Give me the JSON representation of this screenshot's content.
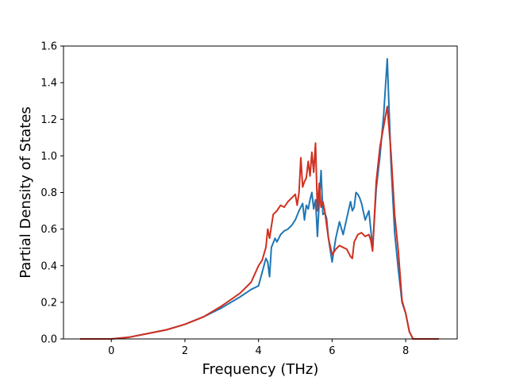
{
  "chart_data": {
    "type": "line",
    "title": "",
    "xlabel": "Frequency (THz)",
    "ylabel": "Partial Density of States",
    "xlim": [
      -1.3,
      9.4
    ],
    "ylim": [
      0.0,
      1.6
    ],
    "xticks": [
      0,
      2,
      4,
      6,
      8
    ],
    "yticks": [
      0.0,
      0.2,
      0.4,
      0.6,
      0.8,
      1.0,
      1.2,
      1.4,
      1.6
    ],
    "xtick_labels": [
      "0",
      "2",
      "4",
      "6",
      "8"
    ],
    "ytick_labels": [
      "0.0",
      "0.2",
      "0.4",
      "0.6",
      "0.8",
      "1.0",
      "1.2",
      "1.4",
      "1.6"
    ],
    "grid": false,
    "legend": false,
    "series": [
      {
        "color": "#1f77b4",
        "x": [
          -0.85,
          0.0,
          0.5,
          1.0,
          1.5,
          2.0,
          2.5,
          3.0,
          3.5,
          3.8,
          4.0,
          4.2,
          4.25,
          4.3,
          4.35,
          4.45,
          4.5,
          4.6,
          4.7,
          4.8,
          4.9,
          5.0,
          5.1,
          5.2,
          5.25,
          5.3,
          5.35,
          5.4,
          5.45,
          5.5,
          5.55,
          5.6,
          5.65,
          5.7,
          5.75,
          5.8,
          5.85,
          5.9,
          6.0,
          6.1,
          6.2,
          6.3,
          6.4,
          6.5,
          6.55,
          6.6,
          6.65,
          6.7,
          6.75,
          6.8,
          6.9,
          7.0,
          7.05,
          7.1,
          7.2,
          7.3,
          7.4,
          7.5,
          7.6,
          7.7,
          7.8,
          7.9,
          8.0,
          8.05,
          8.1,
          8.2,
          8.9
        ],
        "y": [
          0.0,
          0.0,
          0.01,
          0.03,
          0.05,
          0.08,
          0.12,
          0.17,
          0.23,
          0.27,
          0.29,
          0.44,
          0.42,
          0.34,
          0.5,
          0.55,
          0.53,
          0.57,
          0.59,
          0.6,
          0.62,
          0.65,
          0.7,
          0.74,
          0.65,
          0.73,
          0.71,
          0.76,
          0.8,
          0.71,
          0.76,
          0.56,
          0.75,
          0.92,
          0.68,
          0.69,
          0.66,
          0.55,
          0.42,
          0.55,
          0.64,
          0.57,
          0.66,
          0.75,
          0.7,
          0.72,
          0.8,
          0.79,
          0.77,
          0.74,
          0.65,
          0.7,
          0.6,
          0.49,
          0.82,
          1.0,
          1.22,
          1.53,
          0.96,
          0.58,
          0.38,
          0.2,
          0.14,
          0.09,
          0.04,
          0.0,
          0.0
        ]
      },
      {
        "color": "#d03020",
        "x": [
          -0.85,
          0.0,
          0.5,
          1.0,
          1.5,
          2.0,
          2.5,
          3.0,
          3.5,
          3.8,
          4.0,
          4.1,
          4.2,
          4.25,
          4.3,
          4.4,
          4.5,
          4.6,
          4.7,
          4.8,
          4.9,
          5.0,
          5.05,
          5.1,
          5.15,
          5.2,
          5.25,
          5.3,
          5.35,
          5.4,
          5.45,
          5.5,
          5.55,
          5.6,
          5.65,
          5.7,
          5.75,
          5.8,
          5.9,
          6.0,
          6.1,
          6.2,
          6.3,
          6.4,
          6.5,
          6.55,
          6.6,
          6.7,
          6.8,
          6.9,
          7.0,
          7.05,
          7.1,
          7.2,
          7.3,
          7.4,
          7.5,
          7.6,
          7.7,
          7.8,
          7.9,
          8.0,
          8.05,
          8.1,
          8.2,
          8.9
        ],
        "y": [
          0.0,
          0.0,
          0.01,
          0.03,
          0.05,
          0.08,
          0.12,
          0.18,
          0.25,
          0.31,
          0.4,
          0.43,
          0.5,
          0.6,
          0.55,
          0.68,
          0.7,
          0.73,
          0.72,
          0.75,
          0.77,
          0.79,
          0.73,
          0.8,
          0.99,
          0.83,
          0.86,
          0.88,
          0.97,
          0.89,
          1.02,
          0.91,
          1.07,
          0.7,
          0.85,
          0.72,
          0.75,
          0.7,
          0.55,
          0.46,
          0.49,
          0.51,
          0.5,
          0.49,
          0.45,
          0.44,
          0.53,
          0.57,
          0.58,
          0.56,
          0.57,
          0.54,
          0.48,
          0.86,
          1.05,
          1.16,
          1.27,
          1.02,
          0.68,
          0.48,
          0.21,
          0.14,
          0.09,
          0.04,
          0.0,
          0.0
        ]
      }
    ]
  }
}
